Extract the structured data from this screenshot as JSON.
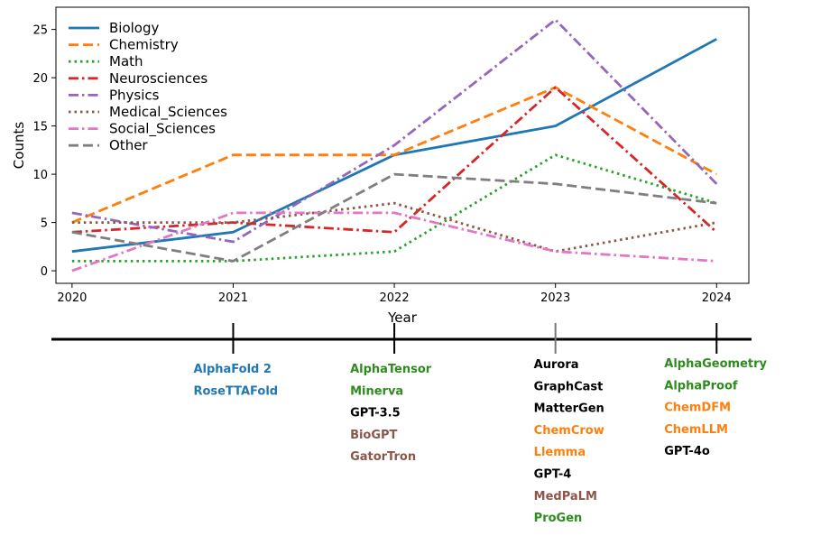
{
  "chart_data": {
    "type": "line",
    "xlabel": "Year",
    "ylabel": "Counts",
    "x": [
      2020,
      2021,
      2022,
      2023,
      2024
    ],
    "xlim": [
      2019.9,
      2024.2
    ],
    "ylim": [
      -1.3,
      27.3
    ],
    "yticks": [
      0,
      5,
      10,
      15,
      20,
      25
    ],
    "grid": false,
    "legend_position": "top-left",
    "series": [
      {
        "name": "Biology",
        "values": [
          2,
          4,
          12,
          15,
          24
        ],
        "color": "#1f77b4",
        "style": "solid"
      },
      {
        "name": "Chemistry",
        "values": [
          5,
          12,
          12,
          19,
          10
        ],
        "color": "#ff7f0e",
        "style": "dashed"
      },
      {
        "name": "Math",
        "values": [
          1,
          1,
          2,
          12,
          7
        ],
        "color": "#2ca02c",
        "style": "dotted"
      },
      {
        "name": "Neurosciences",
        "values": [
          4,
          5,
          4,
          19,
          4
        ],
        "color": "#d62728",
        "style": "dashdot"
      },
      {
        "name": "Physics",
        "values": [
          6,
          3,
          13,
          26,
          9
        ],
        "color": "#9467bd",
        "style": "dashdot"
      },
      {
        "name": "Medical_Sciences",
        "values": [
          5,
          5,
          7,
          2,
          5
        ],
        "color": "#8c564b",
        "style": "dotted"
      },
      {
        "name": "Social_Sciences",
        "values": [
          0,
          6,
          6,
          2,
          1
        ],
        "color": "#e377c2",
        "style": "dashdot"
      },
      {
        "name": "Other",
        "values": [
          4,
          1,
          10,
          9,
          7
        ],
        "color": "#7f7f7f",
        "style": "dashed"
      }
    ]
  },
  "timeline": {
    "groups": [
      {
        "year": 2021,
        "items": [
          {
            "text": "AlphaFold 2",
            "color": "#1f77b4"
          },
          {
            "text": "RoseTTAFold",
            "color": "#1f77b4"
          }
        ]
      },
      {
        "year": 2022,
        "items": [
          {
            "text": "AlphaTensor",
            "color": "#2e8b1e"
          },
          {
            "text": "Minerva",
            "color": "#2e8b1e"
          },
          {
            "text": "GPT-3.5",
            "color": "#000000"
          },
          {
            "text": "BioGPT",
            "color": "#8c564b"
          },
          {
            "text": "GatorTron",
            "color": "#8c564b"
          }
        ]
      },
      {
        "year": 2023,
        "items": [
          {
            "text": "Aurora",
            "color": "#000000"
          },
          {
            "text": "GraphCast",
            "color": "#000000"
          },
          {
            "text": "MatterGen",
            "color": "#000000"
          },
          {
            "text": "ChemCrow",
            "color": "#ff7f0e"
          },
          {
            "text": "Llemma",
            "color": "#ff7f0e"
          },
          {
            "text": "GPT-4",
            "color": "#000000"
          },
          {
            "text": "MedPaLM",
            "color": "#8c564b"
          },
          {
            "text": "ProGen",
            "color": "#2e8b1e"
          }
        ]
      },
      {
        "year": 2024,
        "items": [
          {
            "text": "AlphaGeometry",
            "color": "#2e8b1e"
          },
          {
            "text": "AlphaProof",
            "color": "#2e8b1e"
          },
          {
            "text": "ChemDFM",
            "color": "#ff7f0e"
          },
          {
            "text": "ChemLLM",
            "color": "#ff7f0e"
          },
          {
            "text": "GPT-4o",
            "color": "#000000"
          }
        ]
      }
    ]
  }
}
